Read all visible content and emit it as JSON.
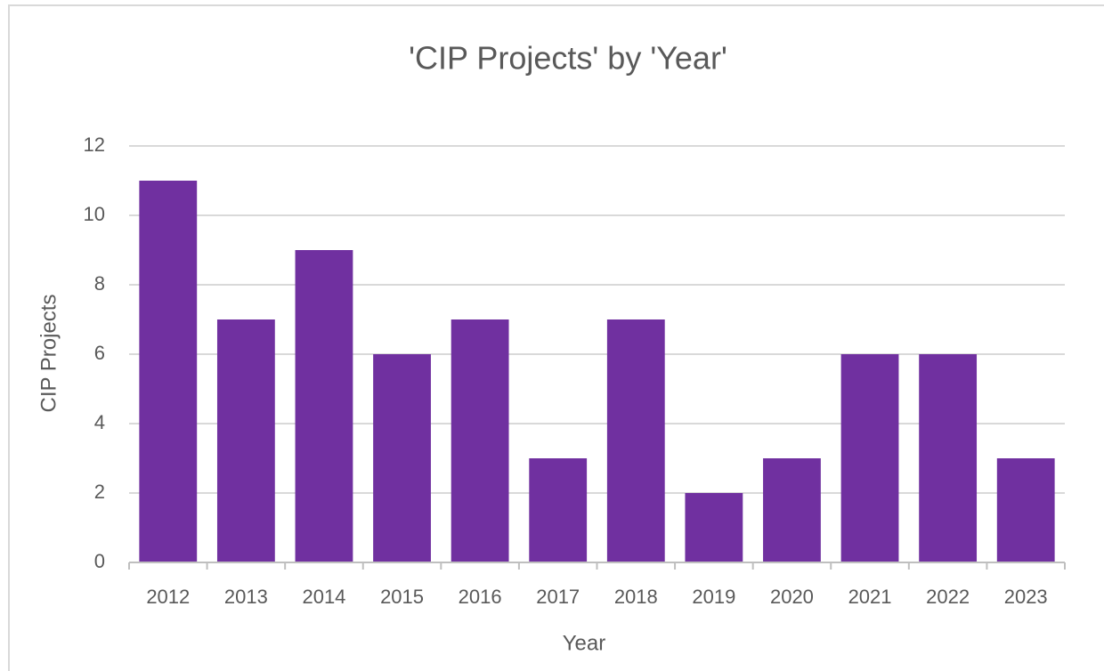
{
  "chart_data": {
    "type": "bar",
    "title": "'CIP Projects' by 'Year'",
    "x_label": "Year",
    "y_label": "CIP Projects",
    "categories": [
      "2012",
      "2013",
      "2014",
      "2015",
      "2016",
      "2017",
      "2018",
      "2019",
      "2020",
      "2021",
      "2022",
      "2023"
    ],
    "values": [
      11,
      7,
      9,
      6,
      7,
      3,
      7,
      2,
      3,
      6,
      6,
      3
    ],
    "color": "#7030a0",
    "ylim": [
      0,
      12
    ],
    "yticks": [
      0,
      2,
      4,
      6,
      8,
      10,
      12
    ],
    "grid": true
  }
}
